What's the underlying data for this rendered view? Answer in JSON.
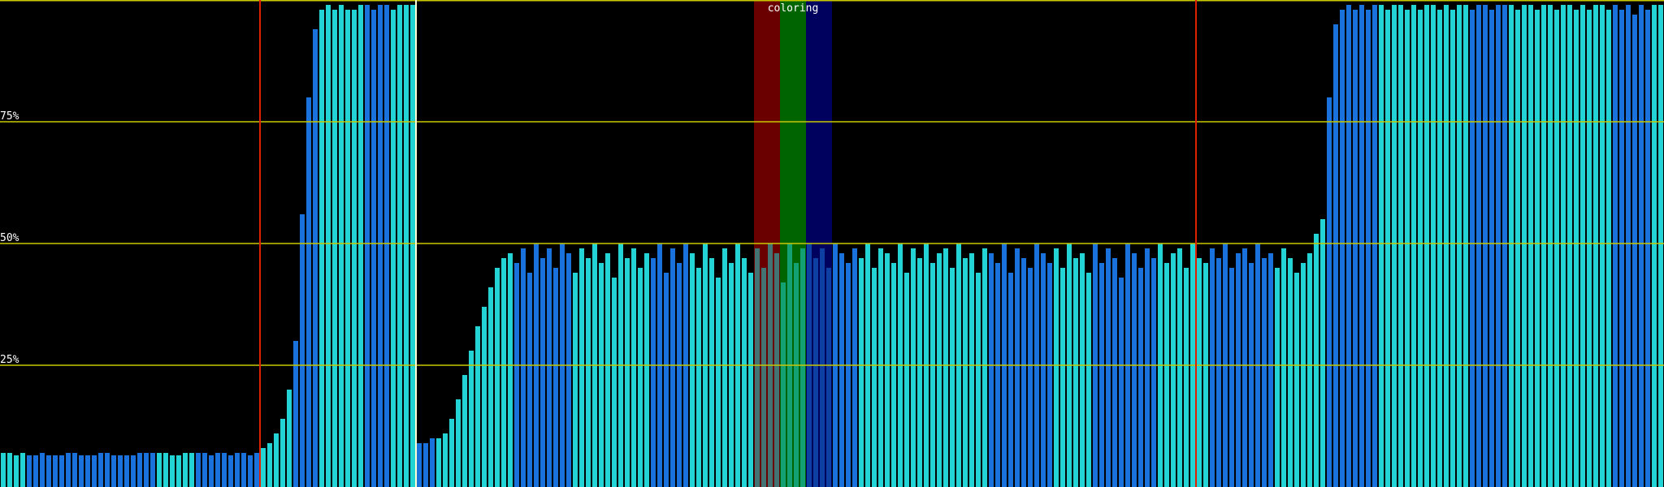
{
  "chart_data": {
    "type": "bar",
    "ylim": [
      0,
      100
    ],
    "yticks": [
      {
        "value": 25,
        "label": "25%"
      },
      {
        "value": 50,
        "label": "50%"
      },
      {
        "value": 75,
        "label": "75%"
      }
    ],
    "grid": true,
    "grid_color": "#c8c800",
    "bar_count": 256,
    "blocks": [
      {
        "color": "#22d4d4",
        "values": [
          7,
          7,
          6.5,
          7
        ]
      },
      {
        "color": "#1a72dc",
        "values": [
          6.5,
          6.5,
          7,
          6.5,
          6.5,
          6.5,
          7,
          7,
          6.5,
          6.5,
          6.5,
          7,
          7,
          6.5,
          6.5,
          6.5,
          6.5,
          7,
          7,
          7
        ]
      },
      {
        "color": "#22d4d4",
        "values": [
          7,
          7,
          6.5,
          6.5,
          7,
          7
        ]
      },
      {
        "color": "#1a72dc",
        "values": [
          7,
          7,
          6.5,
          7,
          7,
          6.5,
          7,
          7,
          6.5,
          7
        ]
      },
      {
        "color": "#22d4d4",
        "values": [
          8,
          9,
          11,
          14,
          20
        ]
      },
      {
        "color": "#1a72dc",
        "values": [
          30,
          56,
          80,
          94
        ]
      },
      {
        "color": "#22d4d4",
        "values": [
          98,
          99,
          98,
          99,
          98,
          98,
          99
        ]
      },
      {
        "color": "#1a72dc",
        "values": [
          99,
          98,
          99,
          99
        ]
      },
      {
        "color": "#22d4d4",
        "values": [
          98,
          99,
          99,
          99
        ]
      },
      {
        "color": "#1a72dc",
        "values": [
          9,
          9,
          10
        ]
      },
      {
        "color": "#22d4d4",
        "values": [
          10,
          11,
          14,
          18,
          23,
          28,
          33,
          37,
          41,
          45,
          47,
          48
        ]
      },
      {
        "color": "#1a72dc",
        "values": [
          46,
          49,
          44,
          50,
          47,
          49,
          45,
          50,
          48
        ]
      },
      {
        "color": "#22d4d4",
        "values": [
          44,
          49,
          47,
          50,
          46,
          48,
          43,
          50,
          47,
          49,
          45,
          48
        ]
      },
      {
        "color": "#1a72dc",
        "values": [
          47,
          50,
          44,
          49,
          46,
          50
        ]
      },
      {
        "color": "#22d4d4",
        "values": [
          48,
          45,
          50,
          47,
          43,
          49,
          46,
          50,
          47,
          44,
          49,
          45,
          50,
          48,
          42,
          50,
          46,
          49
        ]
      },
      {
        "color": "#1a72dc",
        "values": [
          50,
          47,
          49,
          45,
          50,
          48,
          46,
          49
        ]
      },
      {
        "color": "#22d4d4",
        "values": [
          47,
          50,
          45,
          49,
          48,
          46,
          50,
          44,
          49,
          47,
          50,
          46,
          48,
          49,
          45,
          50,
          47,
          48,
          44,
          49
        ]
      },
      {
        "color": "#1a72dc",
        "values": [
          48,
          46,
          50,
          44,
          49,
          47,
          45,
          50,
          48,
          46
        ]
      },
      {
        "color": "#22d4d4",
        "values": [
          49,
          45,
          50,
          47,
          48,
          44
        ]
      },
      {
        "color": "#1a72dc",
        "values": [
          50,
          46,
          49,
          47,
          43,
          50,
          48,
          45,
          49,
          47
        ]
      },
      {
        "color": "#22d4d4",
        "values": [
          50,
          46,
          48,
          49,
          45,
          50,
          47,
          46
        ]
      },
      {
        "color": "#1a72dc",
        "values": [
          49,
          47,
          50,
          45,
          48,
          49,
          46,
          50,
          47,
          48
        ]
      },
      {
        "color": "#22d4d4",
        "values": [
          45,
          49,
          47,
          44,
          46,
          48,
          52,
          55
        ]
      },
      {
        "color": "#1a72dc",
        "values": [
          80,
          95,
          98,
          99,
          98,
          99,
          98,
          99
        ]
      },
      {
        "color": "#22d4d4",
        "values": [
          99,
          98,
          99,
          99,
          98,
          99,
          98,
          99,
          99,
          98,
          99,
          98,
          99,
          99
        ]
      },
      {
        "color": "#1a72dc",
        "values": [
          98,
          99,
          99,
          98,
          99,
          99
        ]
      },
      {
        "color": "#22d4d4",
        "values": [
          99,
          98,
          99,
          99,
          98,
          99,
          99,
          98,
          99,
          99,
          98,
          99,
          98,
          99,
          99,
          98
        ]
      },
      {
        "color": "#1a72dc",
        "values": [
          99,
          98,
          99,
          97,
          99,
          98
        ]
      },
      {
        "color": "#22d4d4",
        "values": [
          99,
          99
        ]
      }
    ],
    "markers": [
      {
        "index": 40,
        "color": "#e02000"
      },
      {
        "index": 64,
        "color": "#ffffd0"
      },
      {
        "index": 184,
        "color": "#e02000"
      }
    ],
    "highlight_label": "coloring",
    "bands": [
      {
        "start": 116,
        "end": 120,
        "color": "#6a0000"
      },
      {
        "start": 120,
        "end": 124,
        "color": "#006400"
      },
      {
        "start": 124,
        "end": 128,
        "color": "#00005e"
      }
    ]
  }
}
